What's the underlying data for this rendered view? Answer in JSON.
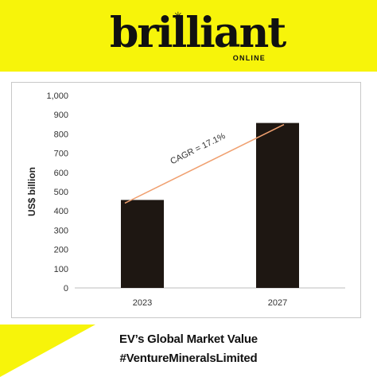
{
  "brand": {
    "name": "brilliant",
    "star": "✳",
    "sub": "ONLINE"
  },
  "chart_data": {
    "type": "bar",
    "categories": [
      "2023",
      "2027"
    ],
    "values": [
      457,
      857
    ],
    "ylabel": "US$ billion",
    "ylim": [
      0,
      1000
    ],
    "yticks": [
      "0",
      "100",
      "200",
      "300",
      "400",
      "500",
      "600",
      "700",
      "800",
      "900",
      "1,000"
    ],
    "annotation": "CAGR = 17.1%",
    "bar_color": "#1e1712",
    "trend_color": "#f0a070",
    "grid": false
  },
  "footer": {
    "line1": "EV’s Global Market Value",
    "line2": "#VentureMineralsLimited"
  },
  "colors": {
    "accent": "#f7f40a"
  }
}
